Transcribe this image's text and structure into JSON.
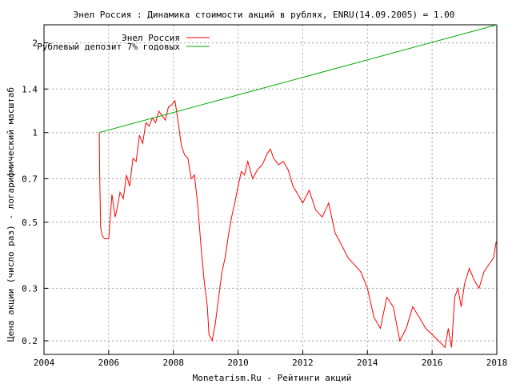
{
  "chart_data": {
    "type": "line",
    "title": "Энел Россия : Динамика стоимости акций в рублях, ENRU(14.09.2005) = 1.00",
    "xlabel": "Monetarism.Ru - Рейтинги акций",
    "ylabel": "Цена акции (число раз) - логарифмический масштаб",
    "y_scale": "log",
    "xlim": [
      2004,
      2018
    ],
    "ylim": [
      0.18,
      2.3
    ],
    "x_ticks": [
      "2004",
      "2006",
      "2008",
      "2010",
      "2012",
      "2014",
      "2016",
      "2018"
    ],
    "y_ticks": [
      "0.2",
      "0.3",
      "0.5",
      "0.7",
      "1",
      "1.4",
      "2"
    ],
    "grid": true,
    "legend_position": "top-left",
    "series": [
      {
        "name": "Энел Россия",
        "color": "#ff0000",
        "x": [
          2005.71,
          2005.72,
          2005.75,
          2005.8,
          2005.88,
          2006.0,
          2006.1,
          2006.2,
          2006.25,
          2006.35,
          2006.45,
          2006.55,
          2006.65,
          2006.75,
          2006.85,
          2006.95,
          2007.05,
          2007.15,
          2007.25,
          2007.35,
          2007.45,
          2007.55,
          2007.65,
          2007.75,
          2007.85,
          2007.95,
          2008.05,
          2008.15,
          2008.25,
          2008.35,
          2008.45,
          2008.55,
          2008.65,
          2008.75,
          2008.85,
          2008.95,
          2009.05,
          2009.1,
          2009.2,
          2009.3,
          2009.4,
          2009.5,
          2009.6,
          2009.7,
          2009.8,
          2009.9,
          2010.0,
          2010.1,
          2010.2,
          2010.3,
          2010.45,
          2010.6,
          2010.75,
          2010.9,
          2011.0,
          2011.1,
          2011.25,
          2011.4,
          2011.55,
          2011.7,
          2011.85,
          2012.0,
          2012.2,
          2012.4,
          2012.6,
          2012.8,
          2013.0,
          2013.2,
          2013.4,
          2013.6,
          2013.8,
          2014.0,
          2014.2,
          2014.4,
          2014.6,
          2014.8,
          2015.0,
          2015.2,
          2015.4,
          2015.6,
          2015.8,
          2016.0,
          2016.2,
          2016.4,
          2016.5,
          2016.6,
          2016.7,
          2016.8,
          2016.9,
          2017.0,
          2017.15,
          2017.3,
          2017.45,
          2017.6,
          2017.75,
          2017.9,
          2017.98
        ],
        "y": [
          1.0,
          0.75,
          0.48,
          0.45,
          0.44,
          0.44,
          0.62,
          0.52,
          0.55,
          0.63,
          0.6,
          0.72,
          0.66,
          0.82,
          0.8,
          0.98,
          0.92,
          1.08,
          1.05,
          1.12,
          1.08,
          1.18,
          1.14,
          1.1,
          1.22,
          1.24,
          1.28,
          1.08,
          0.9,
          0.84,
          0.82,
          0.7,
          0.72,
          0.58,
          0.42,
          0.32,
          0.26,
          0.21,
          0.2,
          0.23,
          0.28,
          0.34,
          0.38,
          0.45,
          0.52,
          0.58,
          0.66,
          0.74,
          0.72,
          0.8,
          0.7,
          0.75,
          0.78,
          0.85,
          0.88,
          0.82,
          0.78,
          0.8,
          0.75,
          0.66,
          0.62,
          0.58,
          0.64,
          0.55,
          0.52,
          0.58,
          0.46,
          0.42,
          0.38,
          0.36,
          0.34,
          0.3,
          0.24,
          0.22,
          0.28,
          0.26,
          0.2,
          0.22,
          0.26,
          0.24,
          0.22,
          0.21,
          0.2,
          0.19,
          0.22,
          0.19,
          0.28,
          0.3,
          0.26,
          0.31,
          0.35,
          0.32,
          0.3,
          0.34,
          0.36,
          0.38,
          0.43
        ]
      },
      {
        "name": "Рублевый депозит 7% годовых",
        "color": "#00aa00",
        "x": [
          2005.71,
          2018.0
        ],
        "y": [
          1.0,
          2.3
        ]
      }
    ]
  }
}
